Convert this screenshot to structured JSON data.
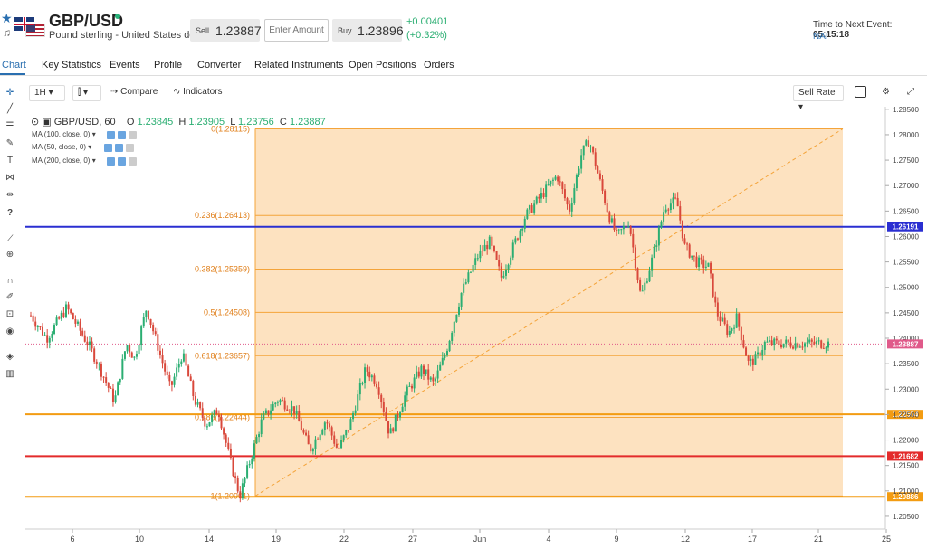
{
  "header": {
    "symbol": "GBP/USD",
    "description": "Pound sterling - United States dollar",
    "sell_label": "Sell",
    "sell_price": "1.23887",
    "amount_placeholder": "Enter Amount",
    "buy_label": "Buy",
    "buy_price": "1.23896",
    "change_abs": "+0.00401",
    "change_pct": "(+0.32%)",
    "event_label": "Time to Next Event:",
    "event_time": "05:15:18",
    "event_name": "NAI"
  },
  "tabs": [
    "Chart",
    "Key Statistics",
    "Events",
    "Profile",
    "Converter",
    "Related Instruments",
    "Open Positions",
    "Orders"
  ],
  "toolbar": {
    "interval": "1H",
    "compare_label": "Compare",
    "indicators_label": "Indicators",
    "sell_rate_label": "Sell Rate"
  },
  "left_tools": [
    "crosshair-icon",
    "trendline-icon",
    "fib-icon",
    "brush-icon",
    "text-icon",
    "pattern-icon",
    "measure-icon",
    "question-icon",
    "ruler-icon",
    "zoom-icon",
    "magnet-icon",
    "lock-draw-icon",
    "lock-icon",
    "eye-icon",
    "layers-icon",
    "trash-icon"
  ],
  "legend": {
    "symbol": "GBP/USD, 60",
    "o_label": "O",
    "o": "1.23845",
    "h_label": "H",
    "h": "1.23905",
    "l_label": "L",
    "l": "1.23756",
    "c_label": "C",
    "c": "1.23887"
  },
  "indicators": [
    "MA (100, close, 0)",
    "MA (50, close, 0)",
    "MA (200, close, 0)"
  ],
  "colors": {
    "up": "#2bae72",
    "down": "#d9483b",
    "fib_zone": "#fde2c0",
    "fib_line": "#f4a43a",
    "blue_line": "#2a2fd1",
    "red_line": "#e32b2b",
    "orange_line": "#f39c12"
  },
  "chart_data": {
    "type": "candlestick",
    "title": "GBP/USD, 60",
    "x_tick_labels": [
      "6",
      "10",
      "14",
      "19",
      "22",
      "27",
      "Jun",
      "4",
      "9",
      "12",
      "17",
      "21",
      "25"
    ],
    "y_tick_labels": [
      "1.20500",
      "1.21000",
      "1.21500",
      "1.22000",
      "1.22500",
      "1.23000",
      "1.23500",
      "1.24000",
      "1.24500",
      "1.25000",
      "1.25500",
      "1.26000",
      "1.26500",
      "1.27000",
      "1.27500",
      "1.28000",
      "1.28500"
    ],
    "ylim": [
      1.2025,
      1.2855
    ],
    "fibonacci": [
      {
        "level": 0,
        "label": "0(1.28115)",
        "price": 1.28115
      },
      {
        "level": 0.236,
        "label": "0.236(1.26413)",
        "price": 1.26413
      },
      {
        "level": 0.382,
        "label": "0.382(1.25359)",
        "price": 1.25359
      },
      {
        "level": 0.5,
        "label": "0.5(1.24508)",
        "price": 1.24508
      },
      {
        "level": 0.618,
        "label": "0.618(1.23657)",
        "price": 1.23657
      },
      {
        "level": 0.786,
        "label": "0.786(1.22444)",
        "price": 1.22444
      },
      {
        "level": 1,
        "label": "1(1.20901)",
        "price": 1.20901
      }
    ],
    "horizontal_lines": [
      {
        "price": 1.26191,
        "label": "1.26191",
        "color": "#2a2fd1"
      },
      {
        "price": 1.22504,
        "label": "1.22504",
        "color": "#f39c12"
      },
      {
        "price": 1.21682,
        "label": "1.21682",
        "color": "#e32b2b"
      },
      {
        "price": 1.20886,
        "label": "1.20886",
        "color": "#f39c12"
      }
    ],
    "last_price": {
      "price": 1.23887,
      "label": "1.23887"
    },
    "price_path": [
      [
        0,
        1.2445
      ],
      [
        0.02,
        1.24
      ],
      [
        0.045,
        1.246
      ],
      [
        0.06,
        1.242
      ],
      [
        0.075,
        1.238
      ],
      [
        0.09,
        1.233
      ],
      [
        0.105,
        1.2275
      ],
      [
        0.12,
        1.239
      ],
      [
        0.13,
        1.236
      ],
      [
        0.145,
        1.246
      ],
      [
        0.16,
        1.238
      ],
      [
        0.175,
        1.23
      ],
      [
        0.19,
        1.237
      ],
      [
        0.205,
        1.228
      ],
      [
        0.22,
        1.223
      ],
      [
        0.235,
        1.226
      ],
      [
        0.25,
        1.216
      ],
      [
        0.262,
        1.209
      ],
      [
        0.275,
        1.216
      ],
      [
        0.29,
        1.224
      ],
      [
        0.31,
        1.228
      ],
      [
        0.33,
        1.226
      ],
      [
        0.35,
        1.218
      ],
      [
        0.37,
        1.224
      ],
      [
        0.385,
        1.218
      ],
      [
        0.4,
        1.223
      ],
      [
        0.42,
        1.234
      ],
      [
        0.435,
        1.231
      ],
      [
        0.45,
        1.221
      ],
      [
        0.47,
        1.229
      ],
      [
        0.49,
        1.234
      ],
      [
        0.505,
        1.231
      ],
      [
        0.52,
        1.237
      ],
      [
        0.54,
        1.249
      ],
      [
        0.56,
        1.256
      ],
      [
        0.575,
        1.259
      ],
      [
        0.59,
        1.252
      ],
      [
        0.605,
        1.258
      ],
      [
        0.62,
        1.264
      ],
      [
        0.64,
        1.268
      ],
      [
        0.66,
        1.272
      ],
      [
        0.675,
        1.265
      ],
      [
        0.69,
        1.276
      ],
      [
        0.7,
        1.279
      ],
      [
        0.71,
        1.273
      ],
      [
        0.725,
        1.264
      ],
      [
        0.735,
        1.26
      ],
      [
        0.75,
        1.263
      ],
      [
        0.765,
        1.248
      ],
      [
        0.78,
        1.256
      ],
      [
        0.795,
        1.266
      ],
      [
        0.81,
        1.267
      ],
      [
        0.82,
        1.258
      ],
      [
        0.835,
        1.255
      ],
      [
        0.85,
        1.254
      ],
      [
        0.86,
        1.245
      ],
      [
        0.875,
        1.241
      ],
      [
        0.885,
        1.244
      ],
      [
        0.9,
        1.235
      ],
      [
        0.91,
        1.236
      ],
      [
        0.92,
        1.239
      ]
    ]
  }
}
